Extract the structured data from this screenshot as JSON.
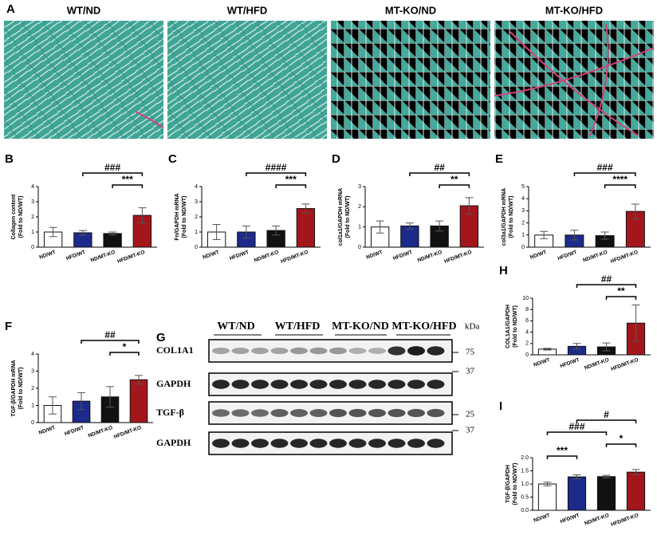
{
  "panel_labels": [
    "A",
    "G"
  ],
  "histology_titles": [
    "WT/ND",
    "WT/HFD",
    "MT-KO/ND",
    "MT-KO/HFD"
  ],
  "western": {
    "groups": [
      "WT/ND",
      "WT/HFD",
      "MT-KO/ND",
      "MT-KO/HFD"
    ],
    "unit": "kDa",
    "rows": [
      {
        "name": "COL1A1",
        "marker": "75"
      },
      {
        "name": "GAPDH",
        "marker": "37"
      },
      {
        "name": "TGF-β",
        "marker": "25"
      },
      {
        "name": "GAPDH",
        "marker": "37"
      }
    ]
  },
  "chart_data": [
    {
      "type": "bar",
      "label": "B",
      "ylabel": [
        "Collagen content",
        "(Fold to ND/WT)"
      ],
      "categories": [
        "ND/WT",
        "HFD/WT",
        "ND/MT-KO",
        "HFD/MT-KO"
      ],
      "values": [
        1.0,
        0.95,
        0.9,
        2.1
      ],
      "errors": [
        0.3,
        0.15,
        0.1,
        0.5
      ],
      "colors": [
        "#ffffff",
        "#1c2a8a",
        "#111111",
        "#a3171c"
      ],
      "ylim": [
        0,
        4
      ],
      "yticks": [
        0,
        1,
        2,
        3,
        4
      ],
      "annotations": [
        {
          "from": 2,
          "to": 3,
          "label": "***"
        },
        {
          "from": 1,
          "to": 3,
          "label": "###"
        }
      ]
    },
    {
      "type": "bar",
      "label": "C",
      "ylabel": [
        "Fn/GAPDH mRNA",
        "(Fold to ND/WT)"
      ],
      "categories": [
        "ND/WT",
        "HFD/WT",
        "ND/MT-KO",
        "HFD/MT-KO"
      ],
      "values": [
        1.0,
        1.0,
        1.1,
        2.55
      ],
      "errors": [
        0.5,
        0.4,
        0.3,
        0.3
      ],
      "colors": [
        "#ffffff",
        "#1c2a8a",
        "#111111",
        "#a3171c"
      ],
      "ylim": [
        0,
        4
      ],
      "yticks": [
        0,
        1,
        2,
        3,
        4
      ],
      "annotations": [
        {
          "from": 2,
          "to": 3,
          "label": "***"
        },
        {
          "from": 1,
          "to": 3,
          "label": "####"
        }
      ]
    },
    {
      "type": "bar",
      "label": "D",
      "ylabel": [
        "col1a1/GAPDH mRNA",
        "(Fold to ND/WT)"
      ],
      "categories": [
        "ND/WT",
        "HFD/WT",
        "ND/MT-KO",
        "HFD/MT-KO"
      ],
      "values": [
        1.0,
        1.05,
        1.05,
        2.05
      ],
      "errors": [
        0.3,
        0.15,
        0.25,
        0.4
      ],
      "colors": [
        "#ffffff",
        "#1c2a8a",
        "#111111",
        "#a3171c"
      ],
      "ylim": [
        0,
        3
      ],
      "yticks": [
        0,
        1,
        2,
        3
      ],
      "annotations": [
        {
          "from": 2,
          "to": 3,
          "label": "**"
        },
        {
          "from": 1,
          "to": 3,
          "label": "##"
        }
      ]
    },
    {
      "type": "bar",
      "label": "E",
      "ylabel": [
        "col3a1/GAPDH mRNA",
        "(Fold to ND/WT)"
      ],
      "categories": [
        "ND/WT",
        "HFD/WT",
        "ND/MT-KO",
        "HFD/MT-KO"
      ],
      "values": [
        1.0,
        1.0,
        0.95,
        2.95
      ],
      "errors": [
        0.3,
        0.4,
        0.3,
        0.6
      ],
      "colors": [
        "#ffffff",
        "#1c2a8a",
        "#111111",
        "#a3171c"
      ],
      "ylim": [
        0,
        5
      ],
      "yticks": [
        0,
        1,
        2,
        3,
        4,
        5
      ],
      "annotations": [
        {
          "from": 2,
          "to": 3,
          "label": "****"
        },
        {
          "from": 1,
          "to": 3,
          "label": "###"
        }
      ]
    },
    {
      "type": "bar",
      "label": "F",
      "ylabel": [
        "TGF-β/GAPDH mRNA",
        "(Fold to ND/WT)"
      ],
      "categories": [
        "ND/WT",
        "HFD/WT",
        "ND/MT-KO",
        "HFD/MT-KO"
      ],
      "values": [
        1.0,
        1.25,
        1.5,
        2.5
      ],
      "errors": [
        0.5,
        0.5,
        0.6,
        0.25
      ],
      "colors": [
        "#ffffff",
        "#1c2a8a",
        "#111111",
        "#a3171c"
      ],
      "ylim": [
        0,
        4
      ],
      "yticks": [
        0,
        1,
        2,
        3,
        4
      ],
      "annotations": [
        {
          "from": 2,
          "to": 3,
          "label": "*"
        },
        {
          "from": 1,
          "to": 3,
          "label": "##"
        }
      ]
    },
    {
      "type": "bar",
      "label": "H",
      "ylabel": [
        "COL1A1/GAPDH",
        "(Fold to ND/WT)"
      ],
      "categories": [
        "ND/WT",
        "HFD/WT",
        "ND/MT-KO",
        "HFD/MT-KO"
      ],
      "values": [
        1.0,
        1.5,
        1.4,
        5.6
      ],
      "errors": [
        0.15,
        0.5,
        0.7,
        3.2
      ],
      "colors": [
        "#ffffff",
        "#1c2a8a",
        "#111111",
        "#a3171c"
      ],
      "ylim": [
        0,
        10
      ],
      "yticks": [
        0,
        2,
        4,
        6,
        8,
        10
      ],
      "annotations": [
        {
          "from": 2,
          "to": 3,
          "label": "**"
        },
        {
          "from": 1,
          "to": 3,
          "label": "##"
        }
      ]
    },
    {
      "type": "bar",
      "label": "I",
      "ylabel": [
        "TGF-β/GAPDH",
        "(Fold to ND/WT)"
      ],
      "categories": [
        "ND/WT",
        "HFD/WT",
        "ND/MT-KO",
        "HFD/MT-KO"
      ],
      "values": [
        1.0,
        1.27,
        1.28,
        1.45
      ],
      "errors": [
        0.07,
        0.08,
        0.05,
        0.1
      ],
      "colors": [
        "#ffffff",
        "#1c2a8a",
        "#111111",
        "#a3171c"
      ],
      "ylim": [
        0,
        2
      ],
      "yticks": [
        {
          "value": 0,
          "label": "0.0"
        },
        {
          "value": 0.5,
          "label": "0.5"
        },
        {
          "value": 1,
          "label": "1.0"
        },
        {
          "value": 1.5,
          "label": "1.5"
        },
        {
          "value": 2,
          "label": "2.0"
        }
      ],
      "annotations": [
        {
          "from": 0,
          "to": 1,
          "label": "***"
        },
        {
          "from": 2,
          "to": 3,
          "label": "*"
        },
        {
          "from": 0,
          "to": 2,
          "label": "###"
        },
        {
          "from": 1,
          "to": 3,
          "label": "#"
        }
      ]
    }
  ]
}
